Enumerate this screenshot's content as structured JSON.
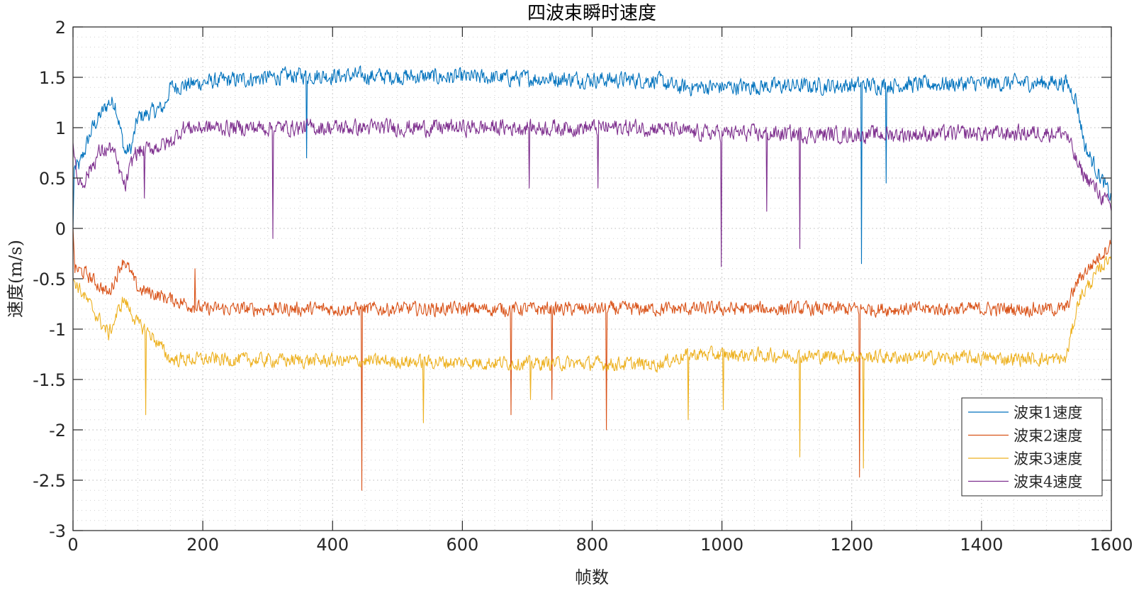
{
  "chart_data": {
    "type": "line",
    "title": "四波束瞬时速度",
    "xlabel": "帧数",
    "ylabel": "速度(m/s)",
    "xlim": [
      0,
      1600
    ],
    "ylim": [
      -3,
      2
    ],
    "xticks": [
      0,
      200,
      400,
      600,
      800,
      1000,
      1200,
      1400,
      1600
    ],
    "yticks": [
      -3,
      -2.5,
      -2,
      -1.5,
      -1,
      -0.5,
      0,
      0.5,
      1,
      1.5,
      2
    ],
    "xtick_labels": [
      "0",
      "200",
      "400",
      "600",
      "800",
      "1000",
      "1200",
      "1400",
      "1600"
    ],
    "ytick_labels": [
      "-3",
      "-2.5",
      "-2",
      "-1.5",
      "-1",
      "-0.5",
      "0",
      "0.5",
      "1",
      "1.5",
      "2"
    ],
    "grid": "on (major and minor, dotted)",
    "legend_placement": "bottom-right",
    "series": [
      {
        "name": "波束1速度",
        "color": "#0072BD",
        "trend": [
          [
            0,
            0
          ],
          [
            2,
            0.6
          ],
          [
            10,
            0.62
          ],
          [
            30,
            1.0
          ],
          [
            55,
            1.25
          ],
          [
            65,
            1.25
          ],
          [
            80,
            0.75
          ],
          [
            90,
            0.8
          ],
          [
            100,
            1.1
          ],
          [
            140,
            1.2
          ],
          [
            150,
            1.4
          ],
          [
            200,
            1.45
          ],
          [
            350,
            1.52
          ],
          [
            600,
            1.5
          ],
          [
            900,
            1.47
          ],
          [
            930,
            1.4
          ],
          [
            1200,
            1.42
          ],
          [
            1530,
            1.45
          ],
          [
            1545,
            1.3
          ],
          [
            1560,
            0.8
          ],
          [
            1600,
            0.3
          ]
        ],
        "spikes": [
          [
            360,
            0.7
          ],
          [
            1215,
            -0.35
          ],
          [
            1253,
            0.45
          ]
        ]
      },
      {
        "name": "波束2速度",
        "color": "#D95319",
        "trend": [
          [
            0,
            0
          ],
          [
            3,
            -0.4
          ],
          [
            20,
            -0.45
          ],
          [
            55,
            -0.65
          ],
          [
            78,
            -0.3
          ],
          [
            100,
            -0.6
          ],
          [
            150,
            -0.7
          ],
          [
            200,
            -0.8
          ],
          [
            1530,
            -0.8
          ],
          [
            1550,
            -0.5
          ],
          [
            1600,
            -0.15
          ]
        ],
        "spikes": [
          [
            188,
            -0.4
          ],
          [
            445,
            -2.6
          ],
          [
            675,
            -1.85
          ],
          [
            738,
            -1.7
          ],
          [
            822,
            -2.0
          ],
          [
            1212,
            -2.47
          ]
        ]
      },
      {
        "name": "波束3速度",
        "color": "#EDB120",
        "trend": [
          [
            0,
            -0.5
          ],
          [
            10,
            -0.6
          ],
          [
            55,
            -1.05
          ],
          [
            78,
            -0.7
          ],
          [
            100,
            -0.95
          ],
          [
            120,
            -1.05
          ],
          [
            150,
            -1.3
          ],
          [
            200,
            -1.3
          ],
          [
            900,
            -1.35
          ],
          [
            950,
            -1.25
          ],
          [
            1530,
            -1.3
          ],
          [
            1550,
            -0.7
          ],
          [
            1600,
            -0.25
          ]
        ],
        "spikes": [
          [
            112,
            -1.85
          ],
          [
            540,
            -1.93
          ],
          [
            705,
            -1.7
          ],
          [
            948,
            -1.9
          ],
          [
            1002,
            -1.8
          ],
          [
            1120,
            -2.27
          ],
          [
            1218,
            -2.38
          ]
        ]
      },
      {
        "name": "波束4速度",
        "color": "#7E2F8E",
        "trend": [
          [
            0,
            0.85
          ],
          [
            5,
            0.5
          ],
          [
            15,
            0.45
          ],
          [
            40,
            0.75
          ],
          [
            60,
            0.8
          ],
          [
            80,
            0.4
          ],
          [
            95,
            0.75
          ],
          [
            150,
            0.85
          ],
          [
            170,
            1.0
          ],
          [
            400,
            1.0
          ],
          [
            900,
            1.0
          ],
          [
            950,
            0.95
          ],
          [
            1200,
            0.93
          ],
          [
            1530,
            0.95
          ],
          [
            1550,
            0.6
          ],
          [
            1600,
            0.2
          ]
        ],
        "spikes": [
          [
            110,
            0.3
          ],
          [
            308,
            -0.1
          ],
          [
            703,
            0.4
          ],
          [
            809,
            0.4
          ],
          [
            999,
            -0.38
          ],
          [
            1069,
            0.17
          ],
          [
            1120,
            -0.2
          ]
        ]
      }
    ]
  }
}
